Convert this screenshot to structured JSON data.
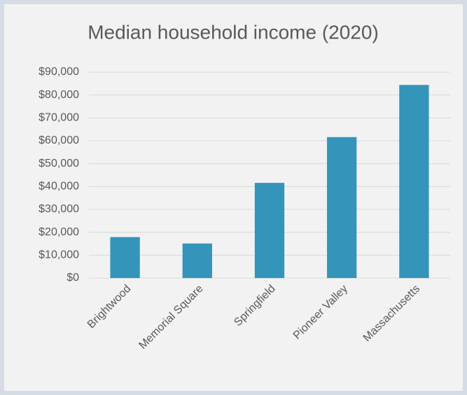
{
  "chart_data": {
    "type": "bar",
    "title": "Median household income (2020)",
    "categories": [
      "Brightwood",
      "Memorial Square",
      "Springfield",
      "Pioneer Valley",
      "Massachusetts"
    ],
    "values": [
      17900,
      15100,
      41600,
      61600,
      84400
    ],
    "color": "#3494ba",
    "ylim": [
      0,
      90000
    ],
    "yticks": [
      {
        "value": 0,
        "label": "$0"
      },
      {
        "value": 10000,
        "label": "$10,000"
      },
      {
        "value": 20000,
        "label": "$20,000"
      },
      {
        "value": 30000,
        "label": "$30,000"
      },
      {
        "value": 40000,
        "label": "$40,000"
      },
      {
        "value": 50000,
        "label": "$50,000"
      },
      {
        "value": 60000,
        "label": "$60,000"
      },
      {
        "value": 70000,
        "label": "$70,000"
      },
      {
        "value": 80000,
        "label": "$80,000"
      },
      {
        "value": 90000,
        "label": "$90,000"
      }
    ],
    "grid": true
  }
}
